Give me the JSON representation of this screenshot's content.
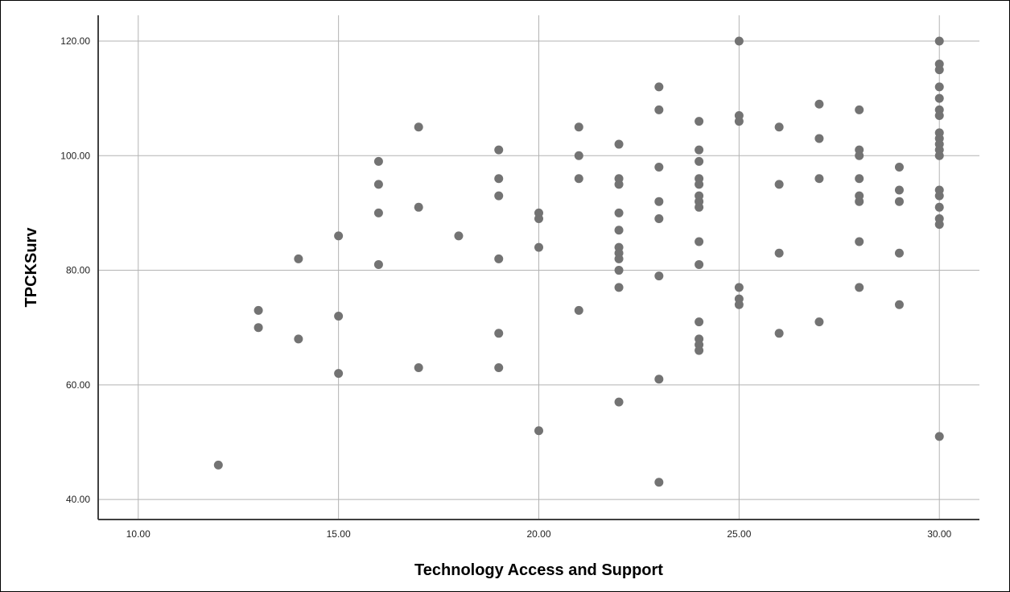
{
  "chart_data": {
    "type": "scatter",
    "title": "",
    "xlabel": "Technology Access and Support",
    "ylabel": "TPCKSurv",
    "xlim": [
      9,
      31
    ],
    "ylim": [
      36.5,
      124.5
    ],
    "xticks": [
      10,
      15,
      20,
      25,
      30
    ],
    "yticks": [
      40,
      60,
      80,
      100,
      120
    ],
    "xtick_labels": [
      "10.00",
      "15.00",
      "20.00",
      "25.00",
      "30.00"
    ],
    "ytick_labels": [
      "40.00",
      "60.00",
      "80.00",
      "100.00",
      "120.00"
    ],
    "grid": true,
    "marker_color": "#737373",
    "gridline_color": "#b3b3b3",
    "axis_color": "#404040",
    "points": [
      [
        12,
        46
      ],
      [
        13,
        73
      ],
      [
        13,
        70
      ],
      [
        14,
        82
      ],
      [
        14,
        68
      ],
      [
        15,
        86
      ],
      [
        15,
        72
      ],
      [
        15,
        62
      ],
      [
        16,
        99
      ],
      [
        16,
        95
      ],
      [
        16,
        90
      ],
      [
        16,
        81
      ],
      [
        17,
        105
      ],
      [
        17,
        91
      ],
      [
        17,
        63
      ],
      [
        18,
        86
      ],
      [
        19,
        101
      ],
      [
        19,
        96
      ],
      [
        19,
        93
      ],
      [
        19,
        82
      ],
      [
        19,
        69
      ],
      [
        19,
        63
      ],
      [
        20,
        90
      ],
      [
        20,
        89
      ],
      [
        20,
        84
      ],
      [
        20,
        52
      ],
      [
        21,
        105
      ],
      [
        21,
        100
      ],
      [
        21,
        96
      ],
      [
        21,
        73
      ],
      [
        22,
        102
      ],
      [
        22,
        96
      ],
      [
        22,
        95
      ],
      [
        22,
        90
      ],
      [
        22,
        87
      ],
      [
        22,
        84
      ],
      [
        22,
        83
      ],
      [
        22,
        82
      ],
      [
        22,
        80
      ],
      [
        22,
        77
      ],
      [
        22,
        57
      ],
      [
        23,
        112
      ],
      [
        23,
        108
      ],
      [
        23,
        98
      ],
      [
        23,
        92
      ],
      [
        23,
        89
      ],
      [
        23,
        79
      ],
      [
        23,
        61
      ],
      [
        23,
        43
      ],
      [
        24,
        106
      ],
      [
        24,
        101
      ],
      [
        24,
        99
      ],
      [
        24,
        96
      ],
      [
        24,
        95
      ],
      [
        24,
        93
      ],
      [
        24,
        92
      ],
      [
        24,
        91
      ],
      [
        24,
        85
      ],
      [
        24,
        81
      ],
      [
        24,
        71
      ],
      [
        24,
        68
      ],
      [
        24,
        67
      ],
      [
        24,
        66
      ],
      [
        25,
        120
      ],
      [
        25,
        107
      ],
      [
        25,
        106
      ],
      [
        25,
        77
      ],
      [
        25,
        75
      ],
      [
        25,
        74
      ],
      [
        26,
        105
      ],
      [
        26,
        95
      ],
      [
        26,
        83
      ],
      [
        26,
        69
      ],
      [
        27,
        109
      ],
      [
        27,
        103
      ],
      [
        27,
        96
      ],
      [
        27,
        71
      ],
      [
        28,
        108
      ],
      [
        28,
        101
      ],
      [
        28,
        100
      ],
      [
        28,
        96
      ],
      [
        28,
        93
      ],
      [
        28,
        92
      ],
      [
        28,
        85
      ],
      [
        28,
        77
      ],
      [
        29,
        98
      ],
      [
        29,
        94
      ],
      [
        29,
        92
      ],
      [
        29,
        83
      ],
      [
        29,
        74
      ],
      [
        30,
        120
      ],
      [
        30,
        116
      ],
      [
        30,
        115
      ],
      [
        30,
        112
      ],
      [
        30,
        110
      ],
      [
        30,
        108
      ],
      [
        30,
        107
      ],
      [
        30,
        104
      ],
      [
        30,
        103
      ],
      [
        30,
        102
      ],
      [
        30,
        101
      ],
      [
        30,
        100
      ],
      [
        30,
        94
      ],
      [
        30,
        93
      ],
      [
        30,
        91
      ],
      [
        30,
        89
      ],
      [
        30,
        88
      ],
      [
        30,
        51
      ]
    ]
  }
}
